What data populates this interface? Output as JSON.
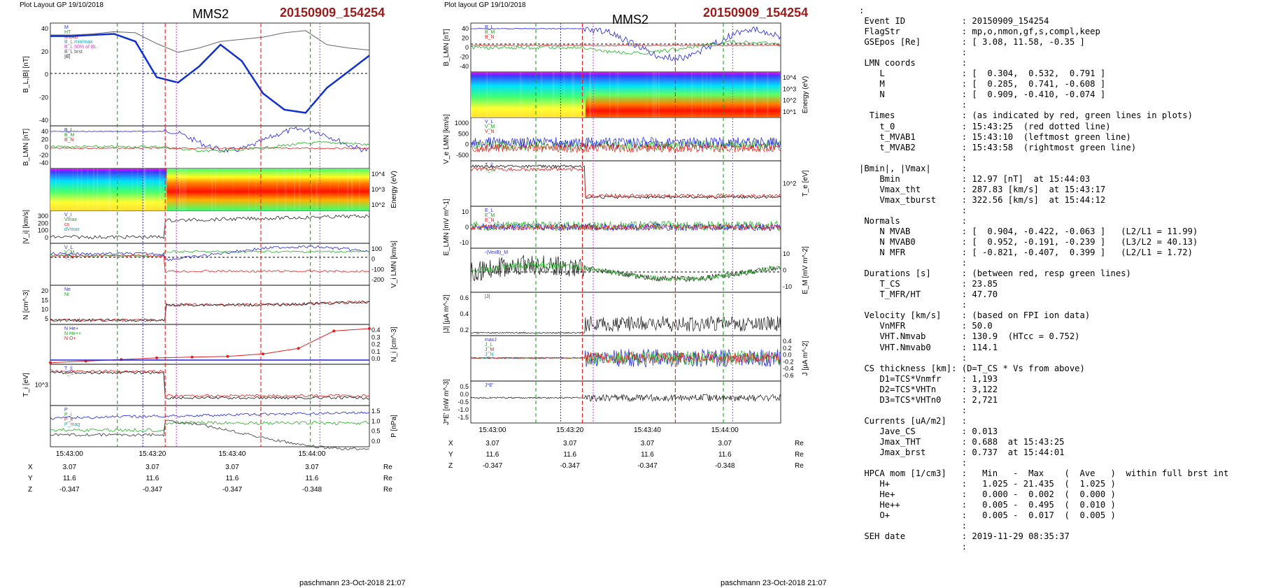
{
  "left": {
    "header": "Plot Layout GP 19/10/2018",
    "spacecraft": "MMS2",
    "event": "20150909_154254",
    "footer": "paschmann 23-Oct-2018 21:07",
    "time_ticks": [
      "15:43:00",
      "15:43:20",
      "15:43:40",
      "15:44:00"
    ],
    "coords": [
      {
        "label": "X",
        "values": [
          "3.07",
          "3.07",
          "3.07",
          "3.07"
        ],
        "unit": "Re"
      },
      {
        "label": "Y",
        "values": [
          "11.6",
          "11.6",
          "11.6",
          "11.6"
        ],
        "unit": "Re"
      },
      {
        "label": "Z",
        "values": [
          "-0.347",
          "-0.347",
          "-0.347",
          "-0.348"
        ],
        "unit": "Re"
      }
    ],
    "panels": [
      {
        "ylabel": "B_L,|B| [nT]",
        "side": "left",
        "yticks": [
          "40",
          "20",
          "0",
          "-20",
          "-40"
        ],
        "legend": [
          "M",
          "HT",
          "MVAB",
          "B_L min/max",
          "B_L 50% of BL",
          "B_L brst",
          "|B|"
        ]
      },
      {
        "ylabel": "B_LMN [nT]",
        "side": "left",
        "yticks": [
          "40",
          "20",
          "0",
          "-20",
          "-40"
        ],
        "legend": [
          "B_L",
          "B_M",
          "B_N"
        ]
      },
      {
        "ylabel": "Energy (eV)",
        "side": "right",
        "yticks": [
          "10^4",
          "10^3",
          "10^2"
        ]
      },
      {
        "ylabel": "|V_i| [km/s]",
        "side": "left",
        "yticks": [
          "300",
          "200",
          "100",
          "0"
        ],
        "legend": [
          "V_i",
          "Vmax",
          "cs",
          "dVmax"
        ]
      },
      {
        "ylabel": "V_i LMN [km/s]",
        "side": "right",
        "yticks": [
          "100",
          "0",
          "-100",
          "-200"
        ],
        "legend": [
          "V_L",
          "V_M",
          "V_N"
        ]
      },
      {
        "ylabel": "N [cm^-3]",
        "side": "left",
        "yticks": [
          "20",
          "15",
          "10",
          "5"
        ],
        "legend": [
          "Ne",
          "Ni"
        ]
      },
      {
        "ylabel": "N_i [cm^-3]",
        "side": "right",
        "yticks": [
          "0.4",
          "0.3",
          "0.2",
          "0.1",
          "0.0"
        ],
        "legend": [
          "N He+",
          "N He++",
          "N O+"
        ]
      },
      {
        "ylabel": "T_i [eV]",
        "side": "left",
        "yticks": [
          "10^3"
        ],
        "legend": [
          "T_||",
          "T_⊥"
        ]
      },
      {
        "ylabel": "P [nPa]",
        "side": "right",
        "yticks": [
          "1.5",
          "1.0",
          "0.5",
          "0.0"
        ],
        "legend": [
          "P",
          "P_i",
          "P_e",
          "P_mag"
        ]
      }
    ]
  },
  "middle": {
    "header": "Plot layout GP 19/10/2018",
    "spacecraft": "MMS2",
    "event": "20150909_154254",
    "footer": "paschmann 23-Oct-2018 21:07",
    "time_ticks": [
      "15:43:00",
      "15:43:20",
      "15:43:40",
      "15:44:00"
    ],
    "coords": [
      {
        "label": "X",
        "values": [
          "3.07",
          "3.07",
          "3.07",
          "3.07"
        ],
        "unit": "Re"
      },
      {
        "label": "Y",
        "values": [
          "11.6",
          "11.6",
          "11.6",
          "11.6"
        ],
        "unit": "Re"
      },
      {
        "label": "Z",
        "values": [
          "-0.347",
          "-0.347",
          "-0.347",
          "-0.348"
        ],
        "unit": "Re"
      }
    ],
    "panels": [
      {
        "ylabel": "B_LMN [nT]",
        "side": "left",
        "yticks": [
          "40",
          "20",
          "0",
          "-20",
          "-40"
        ],
        "legend": [
          "B_L",
          "B_M",
          "B_N"
        ]
      },
      {
        "ylabel": "Energy (eV)",
        "side": "right",
        "yticks": [
          "10^4",
          "10^3",
          "10^2",
          "10^1"
        ]
      },
      {
        "ylabel": "V_e LMN [km/s]",
        "side": "left",
        "yticks": [
          "1000",
          "500",
          "0",
          "-500"
        ],
        "legend": [
          "V_L",
          "V_M",
          "V_N"
        ]
      },
      {
        "ylabel": "T_e [eV]",
        "side": "right",
        "yticks": [
          "10^2"
        ],
        "legend": [
          "T_||",
          "T_⊥"
        ]
      },
      {
        "ylabel": "E_LMN [mV m^-1]",
        "side": "left",
        "yticks": [
          "10",
          "0",
          "-10"
        ],
        "legend": [
          "E_L",
          "E_M",
          "E_N"
        ]
      },
      {
        "ylabel": "E_M [mV m^-2]",
        "side": "right",
        "yticks": [
          "10",
          "0",
          "-10"
        ],
        "legend": [
          "-(VexB)_M"
        ]
      },
      {
        "ylabel": "|J| [µA m^-2]",
        "side": "left",
        "yticks": [
          "0.6",
          "0.4",
          "0.2"
        ],
        "legend": [
          "|J|"
        ]
      },
      {
        "ylabel": "J [µA m^-2]",
        "side": "right",
        "yticks": [
          "0.4",
          "0.2",
          "0.0",
          "-0.2",
          "-0.4",
          "-0.6"
        ],
        "legend": [
          "maxJ",
          "J_L",
          "J_M",
          "J_N"
        ]
      },
      {
        "ylabel": "J*E' [nW m^-3]",
        "side": "left",
        "yticks": [
          "0.5",
          "0.0",
          "-0.5",
          "-1.0",
          "-1.5"
        ],
        "legend": [
          "J*E'"
        ]
      }
    ]
  },
  "chart_data": [
    {
      "type": "line",
      "title": "MMS2 20150909_154254",
      "x": [
        "15:42:50",
        "15:43:00",
        "15:43:10",
        "15:43:20",
        "15:43:23",
        "15:43:25",
        "15:43:27",
        "15:43:30",
        "15:43:35",
        "15:43:40",
        "15:43:45",
        "15:43:50",
        "15:43:55",
        "15:44:00",
        "15:44:05",
        "15:44:10"
      ],
      "series": [
        {
          "name": "B_L brst",
          "values": [
            33,
            33,
            34,
            35,
            28,
            -5,
            -10,
            5,
            25,
            10,
            -20,
            -35,
            -38,
            -15,
            0,
            15
          ]
        },
        {
          "name": "|B|",
          "values": [
            34,
            34,
            35,
            37,
            36,
            26,
            18,
            22,
            28,
            30,
            32,
            36,
            38,
            25,
            22,
            20
          ]
        }
      ],
      "xlabel": "",
      "ylabel": "B_L,|B| [nT]",
      "ylim": [
        -50,
        45
      ]
    },
    {
      "type": "line",
      "title": "MMS2 20150909_154254",
      "x": [
        "15:42:50",
        "15:43:00",
        "15:43:10",
        "15:43:20",
        "15:43:25",
        "15:43:30",
        "15:43:40",
        "15:43:50",
        "15:44:00",
        "15:44:10"
      ],
      "series": [
        {
          "name": "N He++",
          "values": [
            0.02,
            0.04,
            0.06,
            0.08,
            0.09,
            0.1,
            0.13,
            0.2,
            0.42,
            0.45
          ]
        }
      ],
      "ylabel": "N_i [cm^-3]",
      "ylim": [
        0,
        0.45
      ]
    }
  ],
  "right_text": [
    ":",
    " Event ID           : 20150909_154254",
    " FlagStr            : mp,o,nmon,gf,s,compl,keep",
    " GSEpos [Re]        : [ 3.08, 11.58, -0.35 ]",
    "                    :",
    " LMN coords         :",
    "    L               : [  0.304,  0.532,  0.791 ]",
    "    M               : [  0.285,  0.741, -0.608 ]",
    "    N               : [  0.909, -0.410, -0.074 ]",
    "                    :",
    "  Times             : (as indicated by red, green lines in plots)",
    "    t_0             : 15:43:25  (red dotted line)",
    "    t_MVAB1         : 15:43:10  (leftmost green line)",
    "    t_MVAB2         : 15:43:58  (rightmost green line)",
    "                    :",
    "|Bmin|, |Vmax|      :",
    "    Bmin            : 12.97 [nT]  at 15:44:03",
    "    Vmax_tht        : 287.83 [km/s]  at 15:43:17",
    "    Vmax_tburst     : 322.56 [km/s]  at 15:44:12",
    "                    :",
    " Normals            :",
    "    N MVAB          : [  0.904, -0.422, -0.063 ]   (L2/L1 = 11.99)",
    "    N MVAB0         : [  0.952, -0.191, -0.239 ]   (L3/L2 = 40.13)",
    "    N MFR           : [ -0.821, -0.407,  0.399 ]   (L2/L1 = 1.72)",
    "                    :",
    " Durations [s]      : (between red, resp green lines)",
    "    T_CS            : 23.85",
    "    T_MFR/HT        : 47.70",
    "                    :",
    " Velocity [km/s]    : (based on FPI ion data)",
    "    VnMFR           : 50.0",
    "    VHT.Nmvab       : 130.9  (HTcc = 0.752)",
    "    VHT.Nmvab0      : 114.1",
    "                    :",
    " CS thickness [km]: (D=T_CS * Vs from above)",
    "    D1=TCS*Vnmfr    : 1,193",
    "    D2=TCS*VHTn     : 3,122",
    "    D3=TCS*VHTn0    : 2,721",
    "                    :",
    " Currents [uA/m2]   :",
    "    Jave_CS         : 0.013",
    "    Jmax_THT        : 0.688  at 15:43:25",
    "    Jmax_brst       : 0.737  at 15:44:01",
    "                    :",
    " HPCA mom [1/cm3]   :   Min   -  Max    (  Ave   )  within full brst int",
    "    H+              :   1.025 - 21.435  (  1.025 )",
    "    He+             :   0.000 -  0.002  (  0.000 )",
    "    He++            :   0.005 -  0.495  (  0.010 )",
    "    O+              :   0.005 -  0.017  (  0.005 )",
    "                    :",
    " SEH date           : 2019-11-29 08:35:37",
    "                    :"
  ]
}
